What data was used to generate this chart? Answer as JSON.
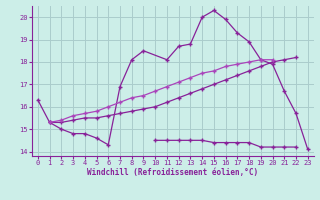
{
  "bg_color": "#cceee8",
  "grid_color": "#aacccc",
  "line_color": "#882299",
  "line_color2": "#aa44bb",
  "title": "Windchill (Refroidissement éolien,°C)",
  "xlim": [
    -0.5,
    23.5
  ],
  "ylim": [
    13.8,
    20.5
  ],
  "yticks": [
    14,
    15,
    16,
    17,
    18,
    19,
    20
  ],
  "xticks": [
    0,
    1,
    2,
    3,
    4,
    5,
    6,
    7,
    8,
    9,
    10,
    11,
    12,
    13,
    14,
    15,
    16,
    17,
    18,
    19,
    20,
    21,
    22,
    23
  ],
  "series1_x": [
    0,
    1,
    2,
    3,
    4,
    5,
    6,
    7,
    8,
    9,
    11,
    12,
    13,
    14,
    15,
    16,
    17,
    18,
    19,
    20,
    21,
    22,
    23
  ],
  "series1_y": [
    16.3,
    15.3,
    15.0,
    14.8,
    14.8,
    14.6,
    14.3,
    16.9,
    18.1,
    18.5,
    18.1,
    18.7,
    18.8,
    20.0,
    20.3,
    19.9,
    19.3,
    18.9,
    18.1,
    17.9,
    16.7,
    15.7,
    14.1
  ],
  "series2_x": [
    10,
    11,
    12,
    13,
    14,
    15,
    16,
    17,
    18,
    19,
    20,
    21,
    22
  ],
  "series2_y": [
    14.5,
    14.5,
    14.5,
    14.5,
    14.5,
    14.4,
    14.4,
    14.4,
    14.4,
    14.2,
    14.2,
    14.2,
    14.2
  ],
  "series3_x": [
    1,
    2,
    3,
    4,
    5,
    6,
    7,
    8,
    9,
    10,
    11,
    12,
    13,
    14,
    15,
    16,
    17,
    18,
    19,
    20,
    21,
    22
  ],
  "series3_y": [
    15.3,
    15.3,
    15.4,
    15.5,
    15.5,
    15.6,
    15.7,
    15.8,
    15.9,
    16.0,
    16.2,
    16.4,
    16.6,
    16.8,
    17.0,
    17.2,
    17.4,
    17.6,
    17.8,
    18.0,
    18.1,
    18.2
  ],
  "series4_x": [
    1,
    2,
    3,
    4,
    5,
    6,
    7,
    8,
    9,
    10,
    11,
    12,
    13,
    14,
    15,
    16,
    17,
    18,
    19,
    20
  ],
  "series4_y": [
    15.3,
    15.4,
    15.6,
    15.7,
    15.8,
    16.0,
    16.2,
    16.4,
    16.5,
    16.7,
    16.9,
    17.1,
    17.3,
    17.5,
    17.6,
    17.8,
    17.9,
    18.0,
    18.1,
    18.1
  ]
}
